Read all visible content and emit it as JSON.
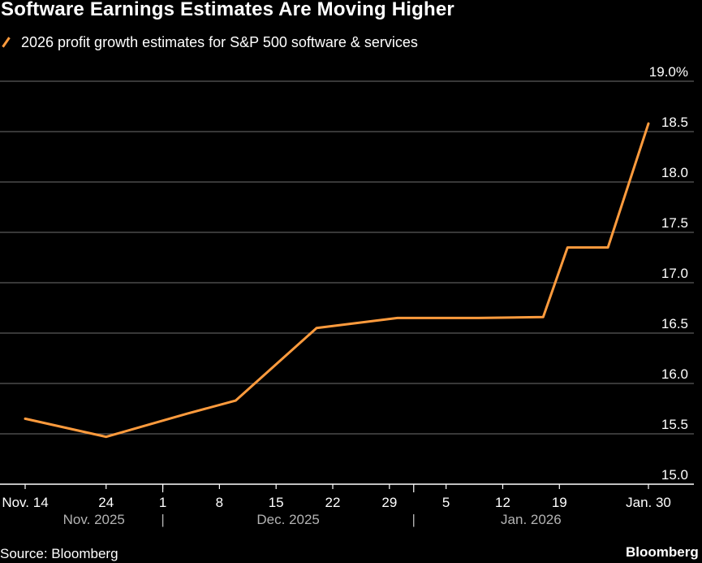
{
  "chart_data": {
    "type": "line",
    "title": "Software Earnings Estimates Are Moving Higher",
    "source": "Source: Bloomberg",
    "brand": "Bloomberg",
    "series": [
      {
        "name": "2026 profit growth estimates for S&P 500 software & services",
        "color": "#ff9b3d",
        "points": [
          {
            "x": "2025-11-14",
            "y": 15.65
          },
          {
            "x": "2025-11-24",
            "y": 15.47
          },
          {
            "x": "2025-12-04",
            "y": 15.7
          },
          {
            "x": "2025-12-10",
            "y": 15.83
          },
          {
            "x": "2025-12-20",
            "y": 16.55
          },
          {
            "x": "2025-12-30",
            "y": 16.65
          },
          {
            "x": "2026-01-09",
            "y": 16.65
          },
          {
            "x": "2026-01-17",
            "y": 16.66
          },
          {
            "x": "2026-01-20",
            "y": 17.35
          },
          {
            "x": "2026-01-25",
            "y": 17.35
          },
          {
            "x": "2026-01-30",
            "y": 18.58
          }
        ]
      }
    ],
    "ylim": [
      15.0,
      19.0
    ],
    "y_ticks": [
      {
        "value": 19.0,
        "label": "19.0%"
      },
      {
        "value": 18.5,
        "label": "18.5"
      },
      {
        "value": 18.0,
        "label": "18.0"
      },
      {
        "value": 17.5,
        "label": "17.5"
      },
      {
        "value": 17.0,
        "label": "17.0"
      },
      {
        "value": 16.5,
        "label": "16.5"
      },
      {
        "value": 16.0,
        "label": "16.0"
      },
      {
        "value": 15.5,
        "label": "15.5"
      },
      {
        "value": 15.0,
        "label": "15.0"
      }
    ],
    "x_ticks": [
      {
        "date": "2025-11-14",
        "label": "Nov. 14"
      },
      {
        "date": "2025-11-24",
        "label": "24"
      },
      {
        "date": "2025-12-01",
        "label": "1"
      },
      {
        "date": "2025-12-08",
        "label": "8"
      },
      {
        "date": "2025-12-15",
        "label": "15"
      },
      {
        "date": "2025-12-22",
        "label": "22"
      },
      {
        "date": "2025-12-29",
        "label": "29"
      },
      {
        "date": "2026-01-05",
        "label": "5"
      },
      {
        "date": "2026-01-12",
        "label": "12"
      },
      {
        "date": "2026-01-19",
        "label": "19"
      },
      {
        "date": "2026-01-30",
        "label": "Jan. 30"
      }
    ],
    "month_labels": [
      {
        "label": "Nov. 2025"
      },
      {
        "label": "Dec. 2025"
      },
      {
        "label": "Jan. 2026"
      }
    ],
    "month_separator": "|",
    "grid": true,
    "legend_position": "top-left"
  }
}
